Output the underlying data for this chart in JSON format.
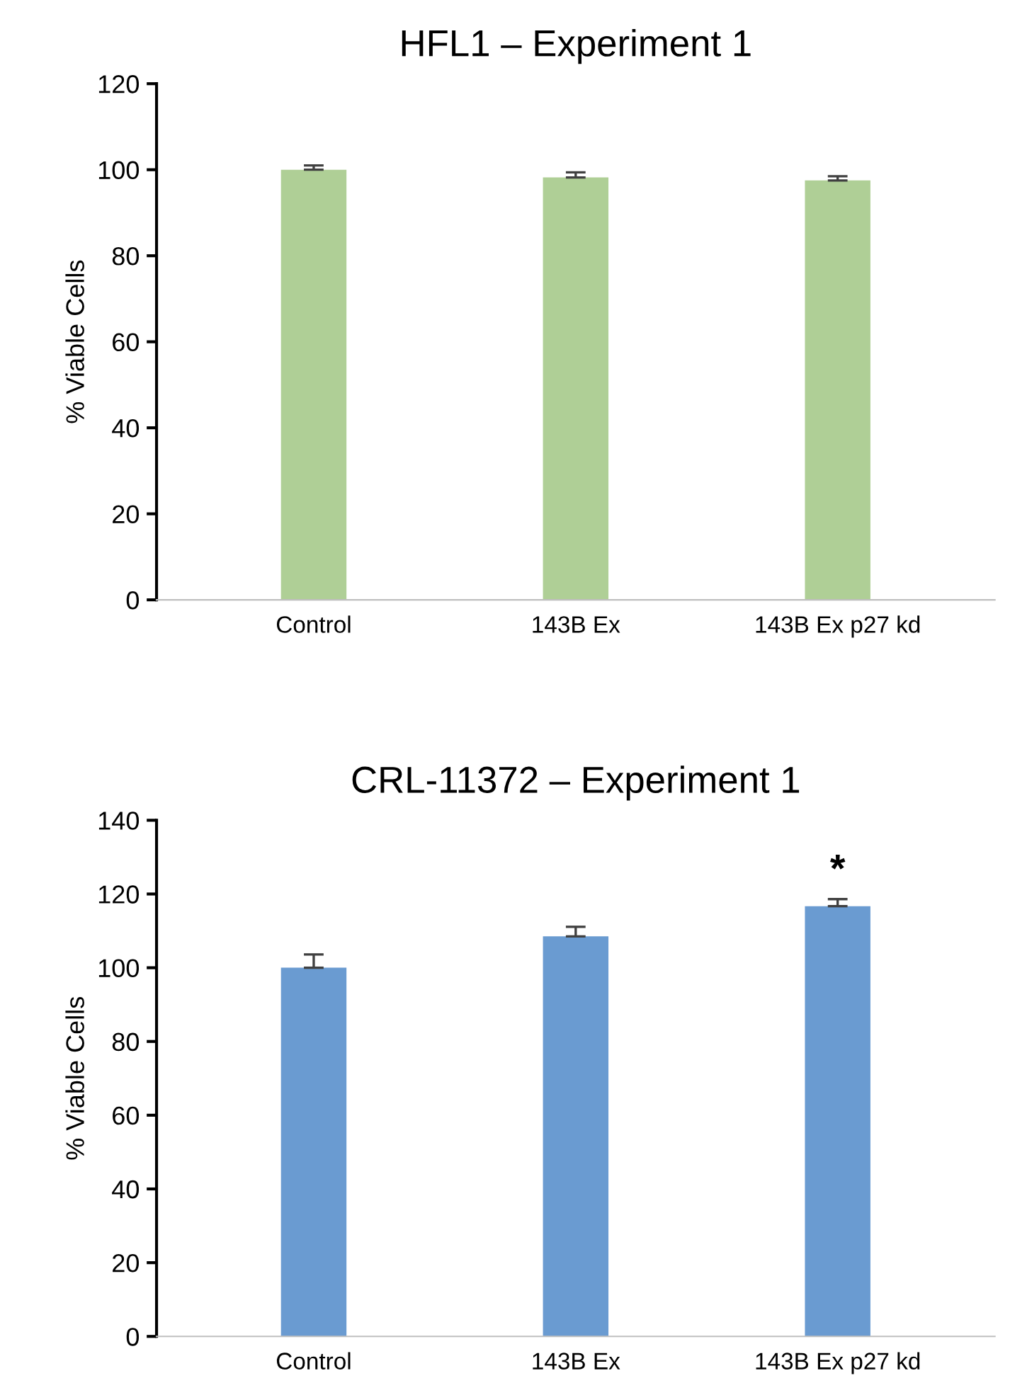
{
  "chart_data": [
    {
      "type": "bar",
      "title": "HFL1 – Experiment 1",
      "ylabel": "% Viable Cells",
      "categories": [
        "Control",
        "143B Ex",
        "143B Ex p27 kd"
      ],
      "values": [
        100,
        98.2,
        97.5
      ],
      "errors": [
        [
          100,
          101
        ],
        [
          98.2,
          99.4
        ],
        [
          97.5,
          98.5
        ]
      ],
      "color": "#afcf96",
      "ylim": [
        0,
        120
      ],
      "yticks": [
        0,
        20,
        40,
        60,
        80,
        100,
        120
      ],
      "grid": false,
      "legend": false
    },
    {
      "type": "bar",
      "title": "CRL-11372 – Experiment 1",
      "ylabel": "% Viable Cells",
      "categories": [
        "Control",
        "143B Ex",
        "143B Ex p27 kd"
      ],
      "values": [
        100,
        108.5,
        116.7
      ],
      "errors": [
        [
          100,
          103.6
        ],
        [
          108.5,
          111.1
        ],
        [
          116.7,
          118.6
        ]
      ],
      "color": "#6a9bd1",
      "ylim": [
        0,
        140
      ],
      "yticks": [
        0,
        20,
        40,
        60,
        80,
        100,
        120,
        140
      ],
      "grid": false,
      "legend": false,
      "annotations": [
        "*"
      ]
    }
  ]
}
